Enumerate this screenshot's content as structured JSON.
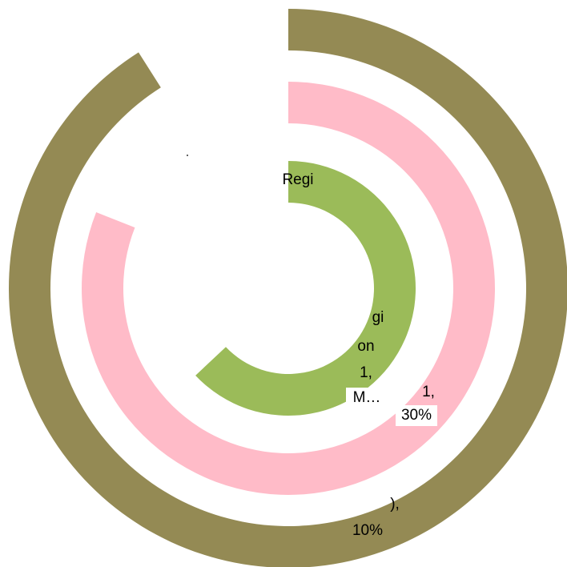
{
  "chart_data": {
    "type": "radial-bar",
    "series": [
      {
        "ring": "outer",
        "value_pct": 91,
        "color": "#948A54"
      },
      {
        "ring": "middle",
        "value_pct": 81,
        "color": "#FFBBC8"
      },
      {
        "ring": "inner",
        "value_pct": 63,
        "color": "#9BBB59"
      }
    ],
    "labels": {
      "inner_top": "Regi",
      "center_lines": [
        "gi",
        "on",
        "1,",
        "M…"
      ],
      "middle_right_pct": "30%",
      "middle_right_comma": "1,",
      "outer_bottom_comma": "),",
      "outer_bottom_pct": "10%"
    }
  }
}
